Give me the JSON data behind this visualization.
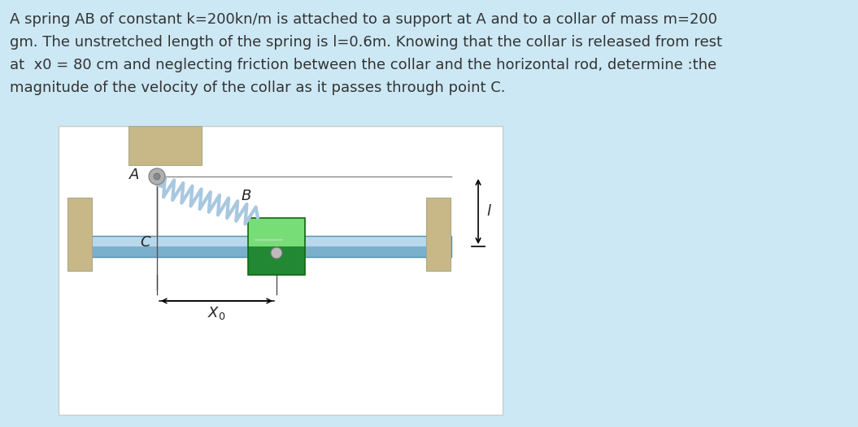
{
  "bg_color": "#cce8f4",
  "text_color": "#333333",
  "title_lines": [
    "A spring AB of constant k=200kn/m is attached to a support at A and to a collar of mass m=200",
    "gm. The unstretched length of the spring is l=0.6m. Knowing that the collar is released from rest",
    "at  x0 = 80 cm and neglecting friction between the collar and the horizontal rod, determine :the",
    "magnitude of the velocity of the collar as it passes through point C."
  ],
  "support_color": "#c8b888",
  "rod_color_light": "#b8d8ec",
  "rod_color_dark": "#7ab0cc",
  "collar_color_light": "#88ee88",
  "collar_color_dark": "#228833",
  "spring_color": "#a8c8e0",
  "pivot_color": "#aaaaaa"
}
